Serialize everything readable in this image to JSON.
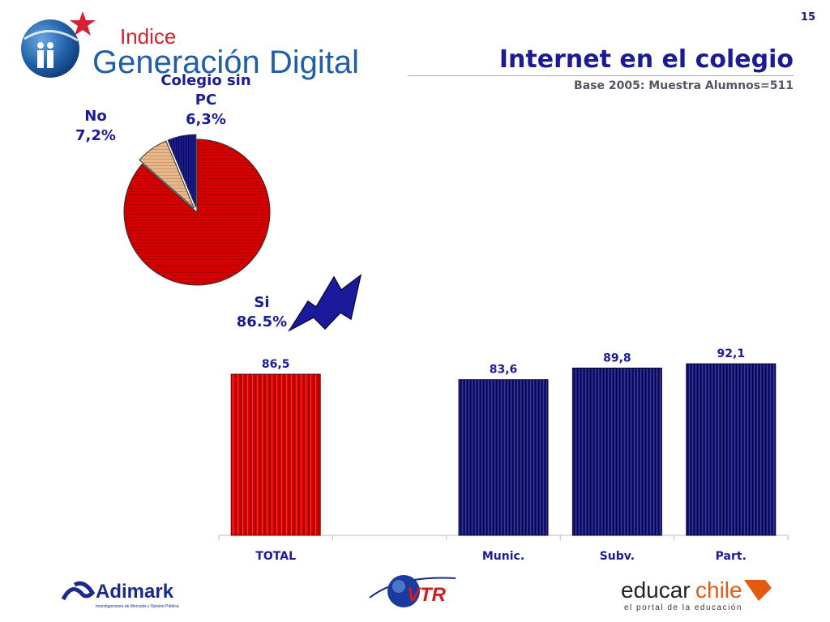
{
  "page_number": "15",
  "brand": {
    "line1": "Indice",
    "line2": "Generación Digital"
  },
  "header": {
    "title": "Internet en el colegio",
    "subtitle": "Base 2005: Muestra Alumnos=511"
  },
  "pie": {
    "slices": [
      {
        "label_lines": [
          "Si",
          "86.5%"
        ],
        "value": 86.5,
        "color": "#d40000"
      },
      {
        "label_lines": [
          "No",
          "7,2%"
        ],
        "value": 7.2,
        "color": "#e8b888"
      },
      {
        "label_lines": [
          "Colegio sin",
          "PC",
          "6,3%"
        ],
        "value": 6.3,
        "color": "#1a1a8c"
      }
    ]
  },
  "chart_data": {
    "type": "bar",
    "categories": [
      "TOTAL",
      "",
      "Munic.",
      "Subv.",
      "Part."
    ],
    "values": [
      86.5,
      null,
      83.6,
      89.8,
      92.1
    ],
    "value_labels": [
      "86,5",
      "",
      "83,6",
      "89,8",
      "92,1"
    ],
    "colors": [
      "#e00000",
      null,
      "#1a1a80",
      "#1a1a80",
      "#1a1a80"
    ],
    "ylim": [
      0,
      100
    ],
    "grid": false
  },
  "footer": {
    "adimark": "Adimark",
    "adimark_tag": "Investigaciones de Mercado y Opinión Pública",
    "vtr": "VTR",
    "educar_a": "educar",
    "educar_b": "chile",
    "educar_tag": "el portal de la educación"
  },
  "colors": {
    "navy": "#1b1b96",
    "red": "#d40000",
    "title": "#1b1b96"
  }
}
